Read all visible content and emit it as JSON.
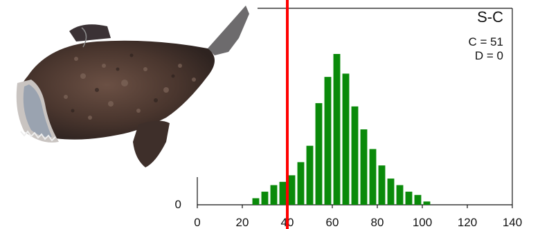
{
  "chart_data": {
    "type": "bar",
    "title": "S-C",
    "annotations": [
      "C = 51",
      "D = 0"
    ],
    "xlabel": "",
    "ylabel": "",
    "xlim": [
      0,
      140
    ],
    "x_ticks": [
      0,
      20,
      40,
      60,
      80,
      100,
      120,
      140
    ],
    "y_ticks": [
      0
    ],
    "bar_color": "#0a8a0a",
    "bar_width": 4,
    "bins": [
      26,
      30,
      34,
      38,
      42,
      46,
      50,
      54,
      58,
      62,
      66,
      70,
      74,
      78,
      82,
      86,
      90,
      94,
      98,
      102,
      106,
      110,
      114
    ],
    "values": [
      2,
      4,
      6,
      7,
      9,
      13,
      18,
      31,
      39,
      46,
      40,
      30,
      23,
      17,
      12,
      8,
      6,
      4,
      3,
      1,
      0,
      0,
      0
    ],
    "reference_line": {
      "x": 40,
      "color": "#ff0000"
    },
    "grid": false
  },
  "image": {
    "subject": "anglerfish-photo"
  }
}
